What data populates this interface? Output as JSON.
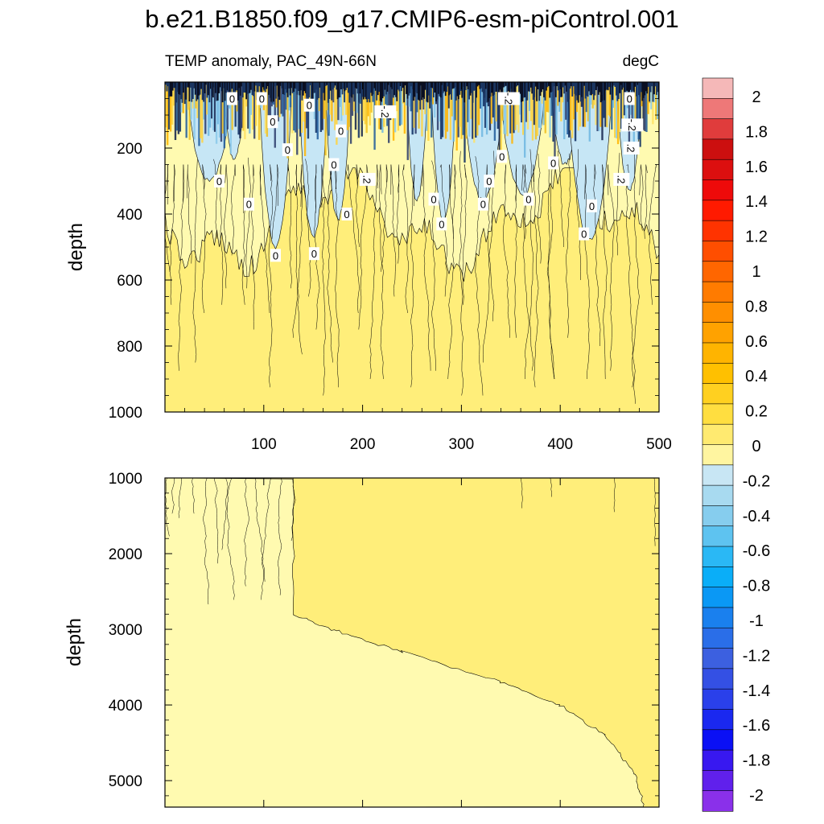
{
  "chart_data": {
    "type": "heatmap",
    "title": "b.e21.B1850.f09_g17.CMIP6-esm-piControl.001",
    "subtitle_left": "TEMP anomaly, PAC_49N-66N",
    "subtitle_right": "degC",
    "panels": [
      {
        "name": "upper",
        "ylabel": "depth",
        "xlim": [
          0,
          500
        ],
        "ylim": [
          1000,
          0
        ],
        "x_ticks": [
          100,
          200,
          300,
          400,
          500
        ],
        "x_tick_labels": [
          "100",
          "200",
          "300",
          "400",
          "500"
        ],
        "y_ticks": [
          200,
          400,
          600,
          800,
          1000
        ],
        "y_tick_labels": [
          "200",
          "400",
          "600",
          "800",
          "1000"
        ],
        "contour_labels": [
          {
            "x": 68,
            "y": 50,
            "text": "0"
          },
          {
            "x": 98,
            "y": 50,
            "text": "0"
          },
          {
            "x": 146,
            "y": 70,
            "text": "0"
          },
          {
            "x": 109,
            "y": 120,
            "text": "0"
          },
          {
            "x": 178,
            "y": 148,
            "text": "0"
          },
          {
            "x": 223,
            "y": 90,
            "text": "-.2"
          },
          {
            "x": 348,
            "y": 50,
            "text": "-.2"
          },
          {
            "x": 470,
            "y": 50,
            "text": "0"
          },
          {
            "x": 473,
            "y": 130,
            "text": "-.2"
          },
          {
            "x": 472,
            "y": 200,
            "text": ".2"
          },
          {
            "x": 124,
            "y": 205,
            "text": "0"
          },
          {
            "x": 171,
            "y": 250,
            "text": "0"
          },
          {
            "x": 205,
            "y": 295,
            "text": ".2"
          },
          {
            "x": 55,
            "y": 300,
            "text": "0"
          },
          {
            "x": 85,
            "y": 370,
            "text": "0"
          },
          {
            "x": 184,
            "y": 400,
            "text": "0"
          },
          {
            "x": 272,
            "y": 355,
            "text": "0"
          },
          {
            "x": 280,
            "y": 430,
            "text": "0"
          },
          {
            "x": 341,
            "y": 225,
            "text": "0"
          },
          {
            "x": 328,
            "y": 300,
            "text": "0"
          },
          {
            "x": 322,
            "y": 370,
            "text": "0"
          },
          {
            "x": 368,
            "y": 355,
            "text": "0"
          },
          {
            "x": 393,
            "y": 245,
            "text": "0"
          },
          {
            "x": 462,
            "y": 295,
            "text": ".2"
          },
          {
            "x": 432,
            "y": 375,
            "text": "0"
          },
          {
            "x": 424,
            "y": 460,
            "text": "0"
          },
          {
            "x": 112,
            "y": 525,
            "text": "0"
          },
          {
            "x": 151,
            "y": 520,
            "text": "0"
          }
        ]
      },
      {
        "name": "lower",
        "ylabel": "depth",
        "xlim": [
          0,
          500
        ],
        "ylim": [
          5350,
          1000
        ],
        "y_ticks": [
          1000,
          2000,
          3000,
          4000,
          5000
        ],
        "y_tick_labels": [
          "1000",
          "2000",
          "3000",
          "4000",
          "5000"
        ],
        "boundary_0p1": [
          [
            130,
            1000
          ],
          [
            130,
            2800
          ],
          [
            175,
            3030
          ],
          [
            240,
            3300
          ],
          [
            340,
            3700
          ],
          [
            400,
            4000
          ],
          [
            445,
            4400
          ],
          [
            475,
            4900
          ],
          [
            485,
            5350
          ]
        ]
      }
    ],
    "colorbar": {
      "labels": [
        "2",
        "1.8",
        "1.6",
        "1.4",
        "1.2",
        "1",
        "0.8",
        "0.6",
        "0.4",
        "0.2",
        "0",
        "-0.2",
        "-0.4",
        "-0.6",
        "-0.8",
        "-1",
        "-1.2",
        "-1.4",
        "-1.6",
        "-1.8",
        "-2"
      ],
      "colors": [
        "#f5b8b8",
        "#ee7878",
        "#e03c3c",
        "#cc0f0f",
        "#dc0f0f",
        "#ee0a0a",
        "#ff1a00",
        "#ff3300",
        "#ff4e00",
        "#ff6600",
        "#ff7b00",
        "#ff8f00",
        "#ffa200",
        "#ffb400",
        "#ffc000",
        "#ffd020",
        "#ffde40",
        "#ffea70",
        "#fff5a0",
        "#c8e6f4",
        "#a8daf0",
        "#86cdee",
        "#5ec3f0",
        "#2ab8f5",
        "#0aaef8",
        "#0a98f5",
        "#1a80ee",
        "#2a6ee8",
        "#3c60e0",
        "#3450e4",
        "#2a40ea",
        "#1a28f0",
        "#0a10f5",
        "#3818f0",
        "#6020ec",
        "#8a30ea"
      ]
    }
  }
}
